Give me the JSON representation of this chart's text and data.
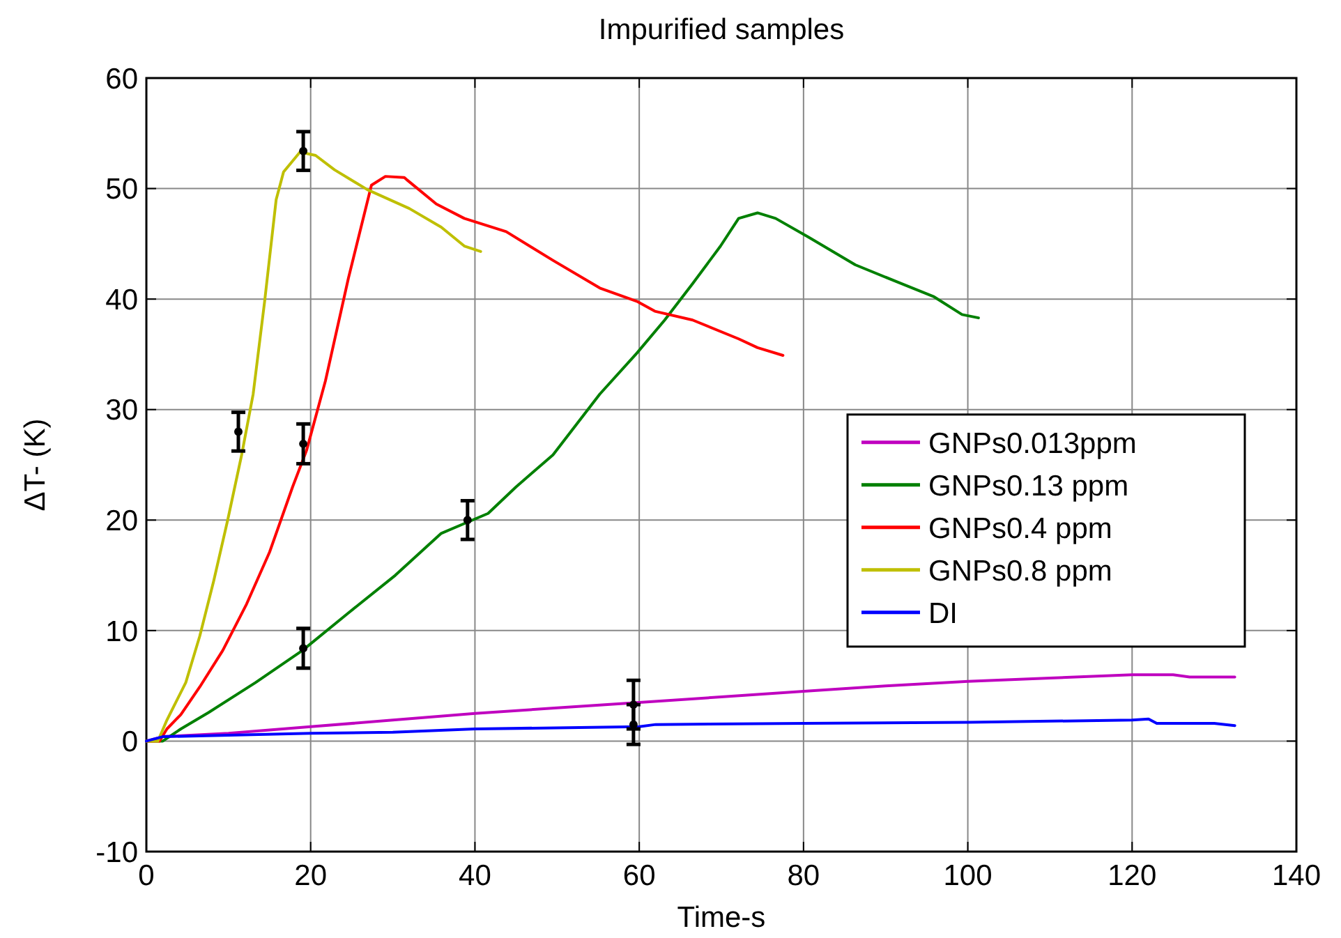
{
  "chart_data": {
    "type": "line",
    "title": "Impurified samples",
    "xlabel": "Time-s",
    "ylabel": "ΔT- (K)",
    "xlim": [
      0,
      140
    ],
    "ylim": [
      -10,
      60
    ],
    "xticks": [
      0,
      20,
      40,
      60,
      80,
      100,
      120,
      140
    ],
    "yticks": [
      -10,
      0,
      10,
      20,
      30,
      40,
      50,
      60
    ],
    "grid": true,
    "legend": "right",
    "series": [
      {
        "name": "GNPs0.013ppm",
        "color": "#bf00bf",
        "x": [
          0,
          2,
          10,
          20,
          30,
          40,
          50,
          60,
          70,
          80,
          90,
          100,
          110,
          120,
          125,
          127,
          132.5
        ],
        "values": [
          0,
          0.4,
          0.7,
          1.3,
          1.9,
          2.5,
          3.0,
          3.5,
          4.0,
          4.5,
          5.0,
          5.4,
          5.7,
          6.0,
          6.0,
          5.8,
          5.8
        ]
      },
      {
        "name": "GNPs0.13 ppm",
        "color": "#008000",
        "x": [
          0,
          2,
          4.2,
          7.6,
          13.3,
          19,
          24.6,
          30.3,
          35.9,
          41.6,
          45,
          49.5,
          55.2,
          59.7,
          63.1,
          66.5,
          69.9,
          72.1,
          74.4,
          76.6,
          80.6,
          86.3,
          91.9,
          95.9,
          99.3,
          101.3
        ],
        "values": [
          0,
          0,
          1.1,
          2.6,
          5.3,
          8.2,
          11.6,
          15,
          18.8,
          20.6,
          23,
          25.9,
          31.4,
          35.1,
          38.1,
          41.4,
          44.8,
          47.3,
          47.8,
          47.3,
          45.6,
          43.1,
          41.4,
          40.2,
          38.6,
          38.3
        ]
      },
      {
        "name": "GNPs0.4 ppm",
        "color": "#ff0000",
        "x": [
          0,
          1.6,
          2.5,
          4.2,
          6.5,
          9.3,
          12.2,
          15,
          17.8,
          19.5,
          21.8,
          24.6,
          27.4,
          29.1,
          31.4,
          31.7,
          35.3,
          38.7,
          43.8,
          49.5,
          55.2,
          59.7,
          61.9,
          66.5,
          72.1,
          74.4,
          77.5
        ],
        "values": [
          0,
          0,
          1.1,
          2.4,
          4.9,
          8.2,
          12.4,
          17.1,
          23,
          26.3,
          32.6,
          41.9,
          50.3,
          51.1,
          51,
          50.8,
          48.6,
          47.3,
          46.1,
          43.5,
          41,
          39.8,
          38.9,
          38.1,
          36.4,
          35.6,
          34.9
        ]
      },
      {
        "name": "GNPs0.8 ppm",
        "color": "#bfbf00",
        "x": [
          0,
          1.4,
          2.5,
          4.8,
          6.5,
          8.2,
          9.9,
          11.6,
          13,
          14.4,
          15.8,
          16.7,
          18.7,
          20.6,
          22.9,
          26.9,
          32,
          35.9,
          38.7,
          40.7
        ],
        "values": [
          0,
          0,
          1.9,
          5.3,
          9.5,
          14.5,
          20,
          25.9,
          31.4,
          39.8,
          49,
          51.5,
          53.3,
          53,
          51.7,
          49.9,
          48.2,
          46.5,
          44.8,
          44.3
        ]
      },
      {
        "name": "DI",
        "color": "#0000ff",
        "x": [
          0,
          2,
          20,
          30,
          40,
          60,
          62,
          80,
          100,
          120,
          122,
          123,
          130,
          132.5
        ],
        "values": [
          0,
          0.4,
          0.7,
          0.8,
          1.1,
          1.3,
          1.5,
          1.6,
          1.7,
          1.9,
          2.0,
          1.6,
          1.6,
          1.4
        ]
      },
      {
        "type": "scatter",
        "marker": "circle",
        "color": "#000000",
        "x": [
          11.2,
          19.1,
          19.1,
          19.1,
          39.1,
          59.3,
          59.3
        ],
        "values": [
          28,
          26.9,
          53.4,
          8.4,
          20,
          3.3,
          1.5
        ],
        "errors": [
          1.75,
          1.8,
          1.75,
          1.8,
          1.75,
          2.2,
          1.8
        ]
      }
    ]
  }
}
